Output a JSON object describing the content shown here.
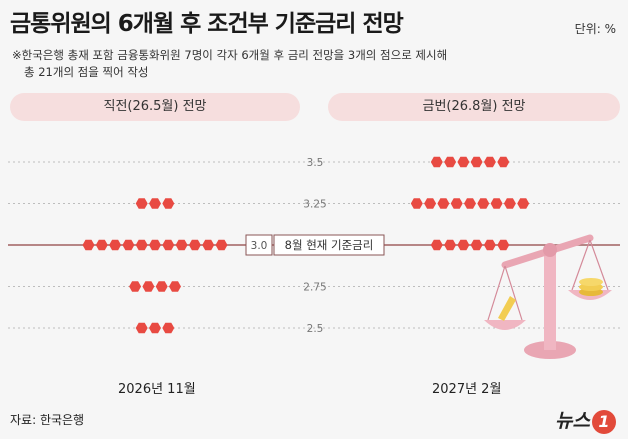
{
  "title": "금통위원의 6개월 후 조건부 기준금리 전망",
  "unit": "단위: %",
  "note_line1": "※한국은행 총재 포함 금융통화위원 7명이 각자 6개월 후 금리 전망을 3개의 점으로 제시해",
  "note_line2": "총 21개의 점을 찍어 작성",
  "panels": {
    "left": "직전(26.5월) 전망",
    "right": "금번(26.8월) 전망"
  },
  "current_rate_label": "8월 현재 기준금리",
  "source": "자료: 한국은행",
  "logo_text": "뉴스",
  "logo_badge": "1",
  "colors": {
    "dot": "#e84a42",
    "current_line": "#a06060",
    "panel": "#f6dede"
  },
  "chart_data": {
    "type": "scatter",
    "y_ticks": [
      "3.5",
      "3.25",
      "3.0",
      "2.75",
      "2.5"
    ],
    "ylim": [
      2.5,
      3.5
    ],
    "current_rate": 3.0,
    "periods": [
      {
        "name": "2026년 11월",
        "dots": [
          {
            "rate": 3.25,
            "count": 3
          },
          {
            "rate": 3.0,
            "count": 11
          },
          {
            "rate": 2.75,
            "count": 4
          },
          {
            "rate": 2.5,
            "count": 3
          }
        ]
      },
      {
        "name": "2027년 2월",
        "dots": [
          {
            "rate": 3.5,
            "count": 6
          },
          {
            "rate": 3.25,
            "count": 9
          },
          {
            "rate": 3.0,
            "count": 6
          }
        ]
      }
    ]
  }
}
